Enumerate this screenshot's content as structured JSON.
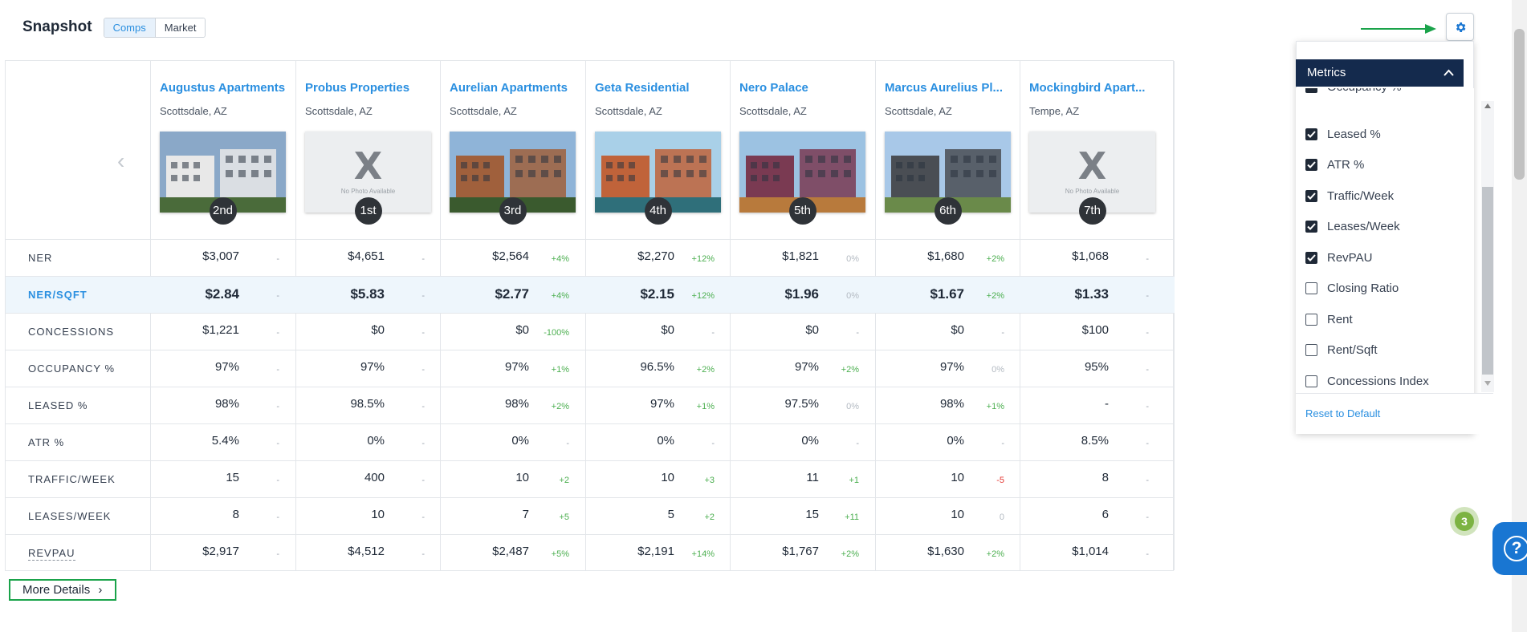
{
  "header": {
    "title": "Snapshot",
    "tabs": [
      {
        "label": "Comps",
        "active": true
      },
      {
        "label": "Market",
        "active": false
      }
    ]
  },
  "properties": [
    {
      "name": "Augustus Apartments",
      "location": "Scottsdale, AZ",
      "rank": "2nd",
      "photo": "building-photo"
    },
    {
      "name": "Probus Properties",
      "location": "Scottsdale, AZ",
      "rank": "1st",
      "photo": "none",
      "no_photo_text": "No Photo Available"
    },
    {
      "name": "Aurelian Apartments",
      "location": "Scottsdale, AZ",
      "rank": "3rd",
      "photo": "building-photo"
    },
    {
      "name": "Geta Residential",
      "location": "Scottsdale, AZ",
      "rank": "4th",
      "photo": "building-photo"
    },
    {
      "name": "Nero Palace",
      "location": "Scottsdale, AZ",
      "rank": "5th",
      "photo": "building-photo"
    },
    {
      "name": "Marcus Aurelius Pl...",
      "location": "Scottsdale, AZ",
      "rank": "6th",
      "photo": "building-photo"
    },
    {
      "name": "Mockingbird Apart...",
      "location": "Tempe, AZ",
      "rank": "7th",
      "photo": "none",
      "no_photo_text": "No Photo Available"
    }
  ],
  "rows": [
    {
      "label": "NER",
      "values": [
        [
          "$3,007",
          "-"
        ],
        [
          "$4,651",
          "-"
        ],
        [
          "$2,564",
          "+4%"
        ],
        [
          "$2,270",
          "+12%"
        ],
        [
          "$1,821",
          "0%"
        ],
        [
          "$1,680",
          "+2%"
        ],
        [
          "$1,068",
          "-"
        ]
      ]
    },
    {
      "label": "NER/SQFT",
      "highlight": true,
      "values": [
        [
          "$2.84",
          "-"
        ],
        [
          "$5.83",
          "-"
        ],
        [
          "$2.77",
          "+4%"
        ],
        [
          "$2.15",
          "+12%"
        ],
        [
          "$1.96",
          "0%"
        ],
        [
          "$1.67",
          "+2%"
        ],
        [
          "$1.33",
          "-"
        ]
      ]
    },
    {
      "label": "CONCESSIONS",
      "values": [
        [
          "$1,221",
          "-"
        ],
        [
          "$0",
          "-"
        ],
        [
          "$0",
          "-100%"
        ],
        [
          "$0",
          "-"
        ],
        [
          "$0",
          "-"
        ],
        [
          "$0",
          "-"
        ],
        [
          "$100",
          "-"
        ]
      ]
    },
    {
      "label": "OCCUPANCY %",
      "values": [
        [
          "97%",
          "-"
        ],
        [
          "97%",
          "-"
        ],
        [
          "97%",
          "+1%"
        ],
        [
          "96.5%",
          "+2%"
        ],
        [
          "97%",
          "+2%"
        ],
        [
          "97%",
          "0%"
        ],
        [
          "95%",
          "-"
        ]
      ]
    },
    {
      "label": "LEASED %",
      "values": [
        [
          "98%",
          "-"
        ],
        [
          "98.5%",
          "-"
        ],
        [
          "98%",
          "+2%"
        ],
        [
          "97%",
          "+1%"
        ],
        [
          "97.5%",
          "0%"
        ],
        [
          "98%",
          "+1%"
        ],
        [
          "-",
          "-"
        ]
      ]
    },
    {
      "label": "ATR %",
      "values": [
        [
          "5.4%",
          "-"
        ],
        [
          "0%",
          "-"
        ],
        [
          "0%",
          "-"
        ],
        [
          "0%",
          "-"
        ],
        [
          "0%",
          "-"
        ],
        [
          "0%",
          "-"
        ],
        [
          "8.5%",
          "-"
        ]
      ]
    },
    {
      "label": "TRAFFIC/WEEK",
      "values": [
        [
          "15",
          "-"
        ],
        [
          "400",
          "-"
        ],
        [
          "10",
          "+2"
        ],
        [
          "10",
          "+3"
        ],
        [
          "11",
          "+1"
        ],
        [
          "10",
          "-5"
        ],
        [
          "8",
          "-"
        ]
      ]
    },
    {
      "label": "LEASES/WEEK",
      "values": [
        [
          "8",
          "-"
        ],
        [
          "10",
          "-"
        ],
        [
          "7",
          "+5"
        ],
        [
          "5",
          "+2"
        ],
        [
          "15",
          "+11"
        ],
        [
          "10",
          "0"
        ],
        [
          "6",
          "-"
        ]
      ]
    },
    {
      "label": "REVPAU",
      "dashed": true,
      "values": [
        [
          "$2,917",
          "-"
        ],
        [
          "$4,512",
          "-"
        ],
        [
          "$2,487",
          "+5%"
        ],
        [
          "$2,191",
          "+14%"
        ],
        [
          "$1,767",
          "+2%"
        ],
        [
          "$1,630",
          "+2%"
        ],
        [
          "$1,014",
          "-"
        ]
      ]
    }
  ],
  "more_details_label": "More Details",
  "metrics": {
    "title": "Metrics",
    "partial_item": "Occupancy %",
    "items": [
      {
        "label": "Leased %",
        "checked": true
      },
      {
        "label": "ATR %",
        "checked": true
      },
      {
        "label": "Traffic/Week",
        "checked": true
      },
      {
        "label": "Leases/Week",
        "checked": true
      },
      {
        "label": "RevPAU",
        "checked": true
      },
      {
        "label": "Closing Ratio",
        "checked": false
      },
      {
        "label": "Rent",
        "checked": false
      },
      {
        "label": "Rent/Sqft",
        "checked": false
      },
      {
        "label": "Concessions Index",
        "checked": false
      }
    ],
    "reset_label": "Reset to Default"
  },
  "help": {
    "badge_count": "3",
    "icon": "question-icon"
  },
  "colors": {
    "accent": "#2a8fe0",
    "navy": "#142a4d",
    "positive": "#4caf50",
    "negative": "#e53935",
    "green_border": "#1aa34a"
  }
}
